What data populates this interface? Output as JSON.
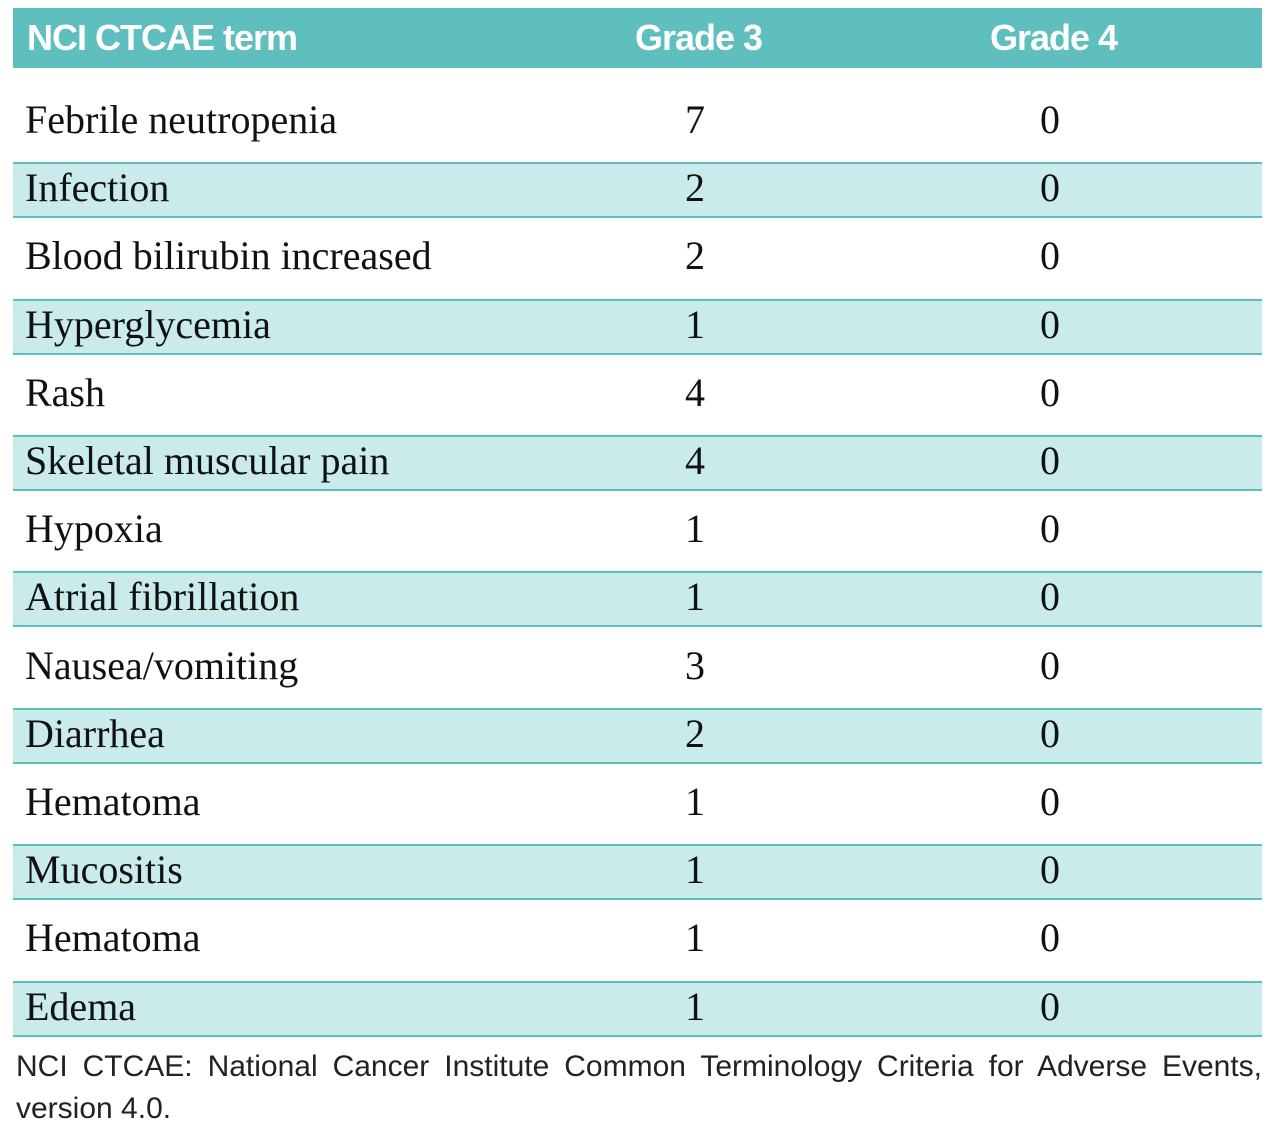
{
  "table": {
    "header": [
      "NCI CTCAE term",
      "Grade 3",
      "Grade 4"
    ],
    "rows": [
      [
        "Febrile neutropenia",
        7,
        0
      ],
      [
        "Infection",
        2,
        0
      ],
      [
        "Blood bilirubin increased",
        2,
        0
      ],
      [
        "Hyperglycemia",
        1,
        0
      ],
      [
        "Rash",
        4,
        0
      ],
      [
        "Skeletal muscular pain",
        4,
        0
      ],
      [
        "Hypoxia",
        1,
        0
      ],
      [
        "Atrial fibrillation",
        1,
        0
      ],
      [
        "Nausea/vomiting",
        3,
        0
      ],
      [
        "Diarrhea",
        2,
        0
      ],
      [
        "Hematoma",
        1,
        0
      ],
      [
        "Mucositis",
        1,
        0
      ],
      [
        "Hematoma",
        1,
        0
      ],
      [
        "Edema",
        1,
        0
      ]
    ]
  },
  "footnote": "NCI CTCAE: National Cancer Institute Common Terminology Criteria for Adverse Events, version 4.0."
}
